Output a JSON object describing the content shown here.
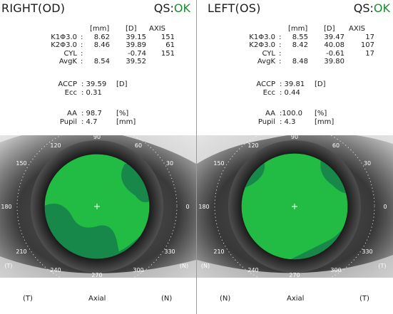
{
  "panels": [
    {
      "title": "RIGHT(OD)",
      "qs_label": "QS:",
      "qs_value": "OK",
      "headers": {
        "mm": "[mm]",
        "d": "[D]",
        "axis": "AXIS"
      },
      "rows": [
        {
          "label": "K1Φ3.0",
          "sep": ":",
          "mm": "8.62",
          "d": "39.15",
          "axis": "151"
        },
        {
          "label": "K2Φ3.0",
          "sep": ":",
          "mm": "8.46",
          "d": "39.89",
          "axis": "61"
        },
        {
          "label": "CYL",
          "sep": ":",
          "mm": "",
          "d": "-0.74",
          "axis": "151"
        },
        {
          "label": "AvgK",
          "sep": ":",
          "mm": "8.54",
          "d": "39.52",
          "axis": ""
        }
      ],
      "accp": {
        "label": "ACCP",
        "value": ": 39.59",
        "unit": "[D]"
      },
      "ecc": {
        "label": "Ecc",
        "value": ": 0.31"
      },
      "aa": {
        "label": "AA",
        "value": ": 98.7",
        "unit": "[%]"
      },
      "pupil": {
        "label": "Pupil",
        "value": ": 4.7",
        "unit": "[mm]"
      },
      "dial": {
        "angles": [
          "90",
          "120",
          "60",
          "150",
          "30",
          "180",
          "0",
          "210",
          "330",
          "240",
          "270",
          "300"
        ],
        "side_left": "(T)",
        "side_right": "(N)"
      },
      "bottom": {
        "left": "(T)",
        "center": "Axial",
        "right": "(N)"
      }
    },
    {
      "title": "LEFT(OS)",
      "qs_label": "QS:",
      "qs_value": "OK",
      "headers": {
        "mm": "[mm]",
        "d": "[D]",
        "axis": "AXIS"
      },
      "rows": [
        {
          "label": "K1Φ3.0",
          "sep": ":",
          "mm": "8.55",
          "d": "39.47",
          "axis": "17"
        },
        {
          "label": "K2Φ3.0",
          "sep": ":",
          "mm": "8.42",
          "d": "40.08",
          "axis": "107"
        },
        {
          "label": "CYL",
          "sep": ":",
          "mm": "",
          "d": "-0.61",
          "axis": "17"
        },
        {
          "label": "AvgK",
          "sep": ":",
          "mm": "8.48",
          "d": "39.80",
          "axis": ""
        }
      ],
      "accp": {
        "label": "ACCP",
        "value": ": 39.81",
        "unit": "[D]"
      },
      "ecc": {
        "label": "Ecc",
        "value": ": 0.44"
      },
      "aa": {
        "label": "AA",
        "value": ":100.0",
        "unit": "[%]"
      },
      "pupil": {
        "label": "Pupil",
        "value": ": 4.3",
        "unit": "[mm]"
      },
      "dial": {
        "angles": [
          "90",
          "120",
          "60",
          "150",
          "30",
          "180",
          "0",
          "210",
          "330",
          "240",
          "270",
          "300"
        ],
        "side_left": "(N)",
        "side_right": "(T)"
      },
      "bottom": {
        "left": "(N)",
        "center": "Axial",
        "right": "(T)"
      }
    }
  ],
  "colors": {
    "map_light": "#22bb44",
    "map_dark": "#17884a",
    "qs_ok": "#1a8a2e"
  }
}
